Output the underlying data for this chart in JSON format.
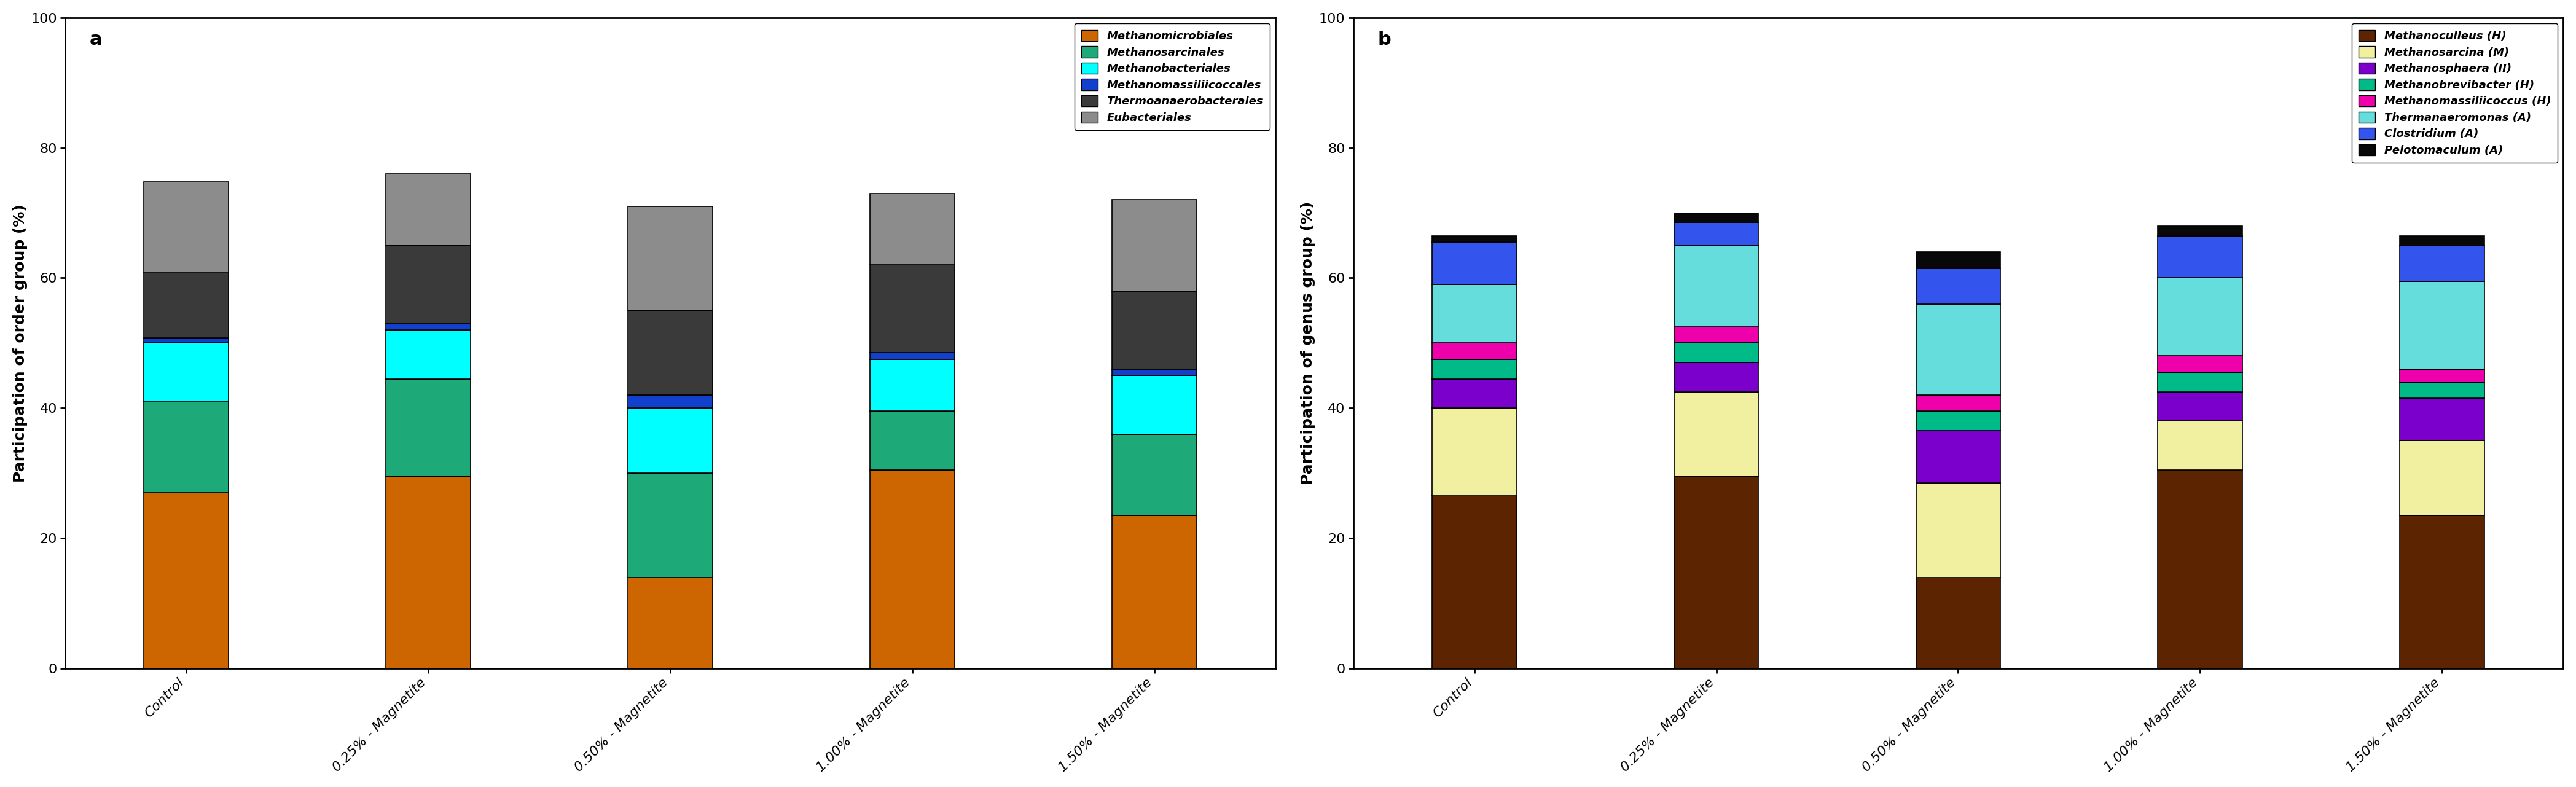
{
  "categories": [
    "Control",
    "0.25% - Magnetite",
    "0.50% - Magnetite",
    "1.00% - Magnetite",
    "1.50% - Magnetite"
  ],
  "chart_a": {
    "title": "a",
    "ylabel": "Participation of order group (%)",
    "ylim": [
      0,
      100
    ],
    "yticks": [
      0,
      20,
      40,
      60,
      80,
      100
    ],
    "series": [
      {
        "label": "Methanomicrobiales",
        "color": "#CD6600",
        "values": [
          27.0,
          29.5,
          14.0,
          30.5,
          23.5
        ]
      },
      {
        "label": "Methanosarcinales",
        "color": "#1EAA78",
        "values": [
          14.0,
          15.0,
          16.0,
          9.0,
          12.5
        ]
      },
      {
        "label": "Methanobacteriales",
        "color": "#00FFFF",
        "values": [
          9.0,
          7.5,
          10.0,
          8.0,
          9.0
        ]
      },
      {
        "label": "Methanomassiliicoccales",
        "color": "#1040CC",
        "values": [
          0.8,
          1.0,
          2.0,
          1.0,
          1.0
        ]
      },
      {
        "label": "Thermoanaerobacterales",
        "color": "#3A3A3A",
        "values": [
          10.0,
          12.0,
          13.0,
          13.5,
          12.0
        ]
      },
      {
        "label": "Eubacteriales",
        "color": "#8C8C8C",
        "values": [
          14.0,
          11.0,
          16.0,
          11.0,
          14.0
        ]
      }
    ]
  },
  "chart_b": {
    "title": "b",
    "ylabel": "Participation of genus group (%)",
    "ylim": [
      0,
      100
    ],
    "yticks": [
      0,
      20,
      40,
      60,
      80,
      100
    ],
    "series": [
      {
        "label": "Methanoculleus (H)",
        "color": "#5C2400",
        "values": [
          26.5,
          29.5,
          14.0,
          30.5,
          23.5
        ]
      },
      {
        "label": "Methanosarcina (M)",
        "color": "#F0F0A0",
        "values": [
          13.5,
          13.0,
          14.5,
          7.5,
          11.5
        ]
      },
      {
        "label": "Methanosphaera (II)",
        "color": "#7B00CC",
        "values": [
          4.5,
          4.5,
          8.0,
          4.5,
          6.5
        ]
      },
      {
        "label": "Methanobrevibacter (H)",
        "color": "#00BB88",
        "values": [
          3.0,
          3.0,
          3.0,
          3.0,
          2.5
        ]
      },
      {
        "label": "Methanomassiliicoccus (H)",
        "color": "#EE00AA",
        "values": [
          2.5,
          2.5,
          2.5,
          2.5,
          2.0
        ]
      },
      {
        "label": "Thermanaeromonas (A)",
        "color": "#66DDDD",
        "values": [
          9.0,
          12.5,
          14.0,
          12.0,
          13.5
        ]
      },
      {
        "label": "Clostridium (A)",
        "color": "#3355EE",
        "values": [
          6.5,
          3.5,
          5.5,
          6.5,
          5.5
        ]
      },
      {
        "label": "Pelotomaculum (A)",
        "color": "#080808",
        "values": [
          1.0,
          1.5,
          2.5,
          1.5,
          1.5
        ]
      }
    ]
  },
  "label_fontsize": 18,
  "tick_fontsize": 16,
  "legend_fontsize": 13,
  "bar_width": 0.35,
  "spine_linewidth": 2.0
}
